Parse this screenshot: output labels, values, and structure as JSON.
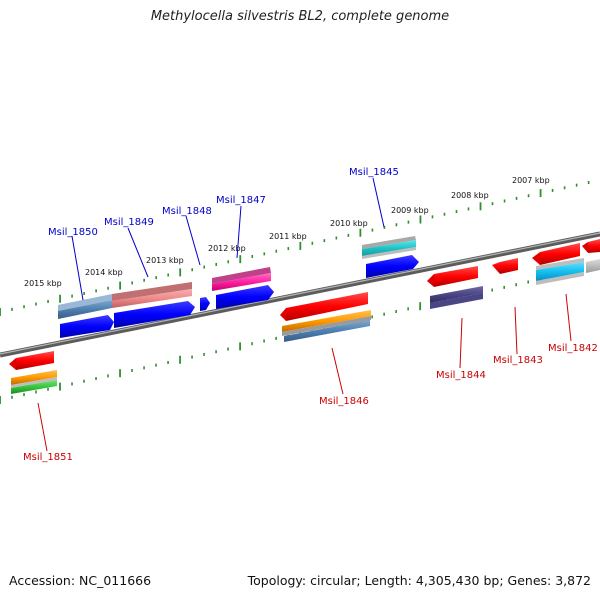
{
  "title": "Methylocella silvestris BL2, complete genome",
  "footer": {
    "accession": "Accession: NC_011666",
    "topology": "Topology: circular; Length: 4,305,430 bp; Genes: 3,872"
  },
  "ticks": [
    "2015 kbp",
    "2014 kbp",
    "2013 kbp",
    "2012 kbp",
    "2011 kbp",
    "2010 kbp",
    "2009 kbp",
    "2008 kbp",
    "2007 kbp"
  ],
  "genes_top": [
    "Msil_1850",
    "Msil_1849",
    "Msil_1848",
    "Msil_1847",
    "Msil_1845"
  ],
  "genes_bottom": [
    "Msil_1851",
    "Msil_1846",
    "Msil_1844",
    "Msil_1843",
    "Msil_1842"
  ],
  "colors": {
    "top_label": "#0000cc",
    "bottom_label": "#cc0000",
    "backbone": "#777777",
    "ruler_dash": "#2f8f2f"
  }
}
